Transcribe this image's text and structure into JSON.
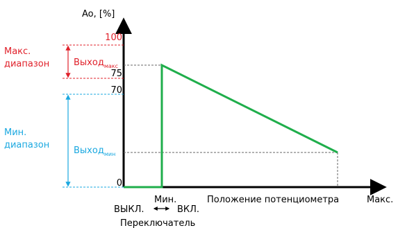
{
  "y_axis": {
    "label": "Ao, [%]",
    "ticks": {
      "t100": "100",
      "t75": "75",
      "t70": "70",
      "t0": "0"
    }
  },
  "x_axis": {
    "label": "Положение потенциометра",
    "min_label": "Мин.",
    "max_label": "Макс."
  },
  "switch": {
    "off_label": "ВЫКЛ.",
    "arrow": "↔",
    "on_label": "ВКЛ.",
    "caption": "Переключатель"
  },
  "ranges": {
    "max_range": {
      "line1": "Макс.",
      "line2": "диапазон",
      "color": "#e0202a"
    },
    "min_range": {
      "line1": "Мин.",
      "line2": "диапазон",
      "color": "#1aa8e0"
    }
  },
  "outputs": {
    "max_main": "Выход",
    "max_sub": "макс",
    "min_main": "Выход",
    "min_sub": "мин"
  },
  "chart_data": {
    "type": "line",
    "ylabel": "Ao, [%]",
    "xlabel": "Положение потенциометра",
    "ylim": [
      0,
      100
    ],
    "y_ticks": [
      0,
      70,
      75,
      100
    ],
    "series": [
      {
        "points": [
          [
            "ВЫКЛ.",
            0
          ],
          [
            "Мин.",
            0
          ],
          [
            "Мин.",
            79
          ],
          [
            "Положение потенциометра",
            21
          ]
        ],
        "color": "#1fae4b"
      }
    ],
    "annotations": [
      "Макс. диапазон 75–100",
      "Мин. диапазон 0–70"
    ]
  }
}
